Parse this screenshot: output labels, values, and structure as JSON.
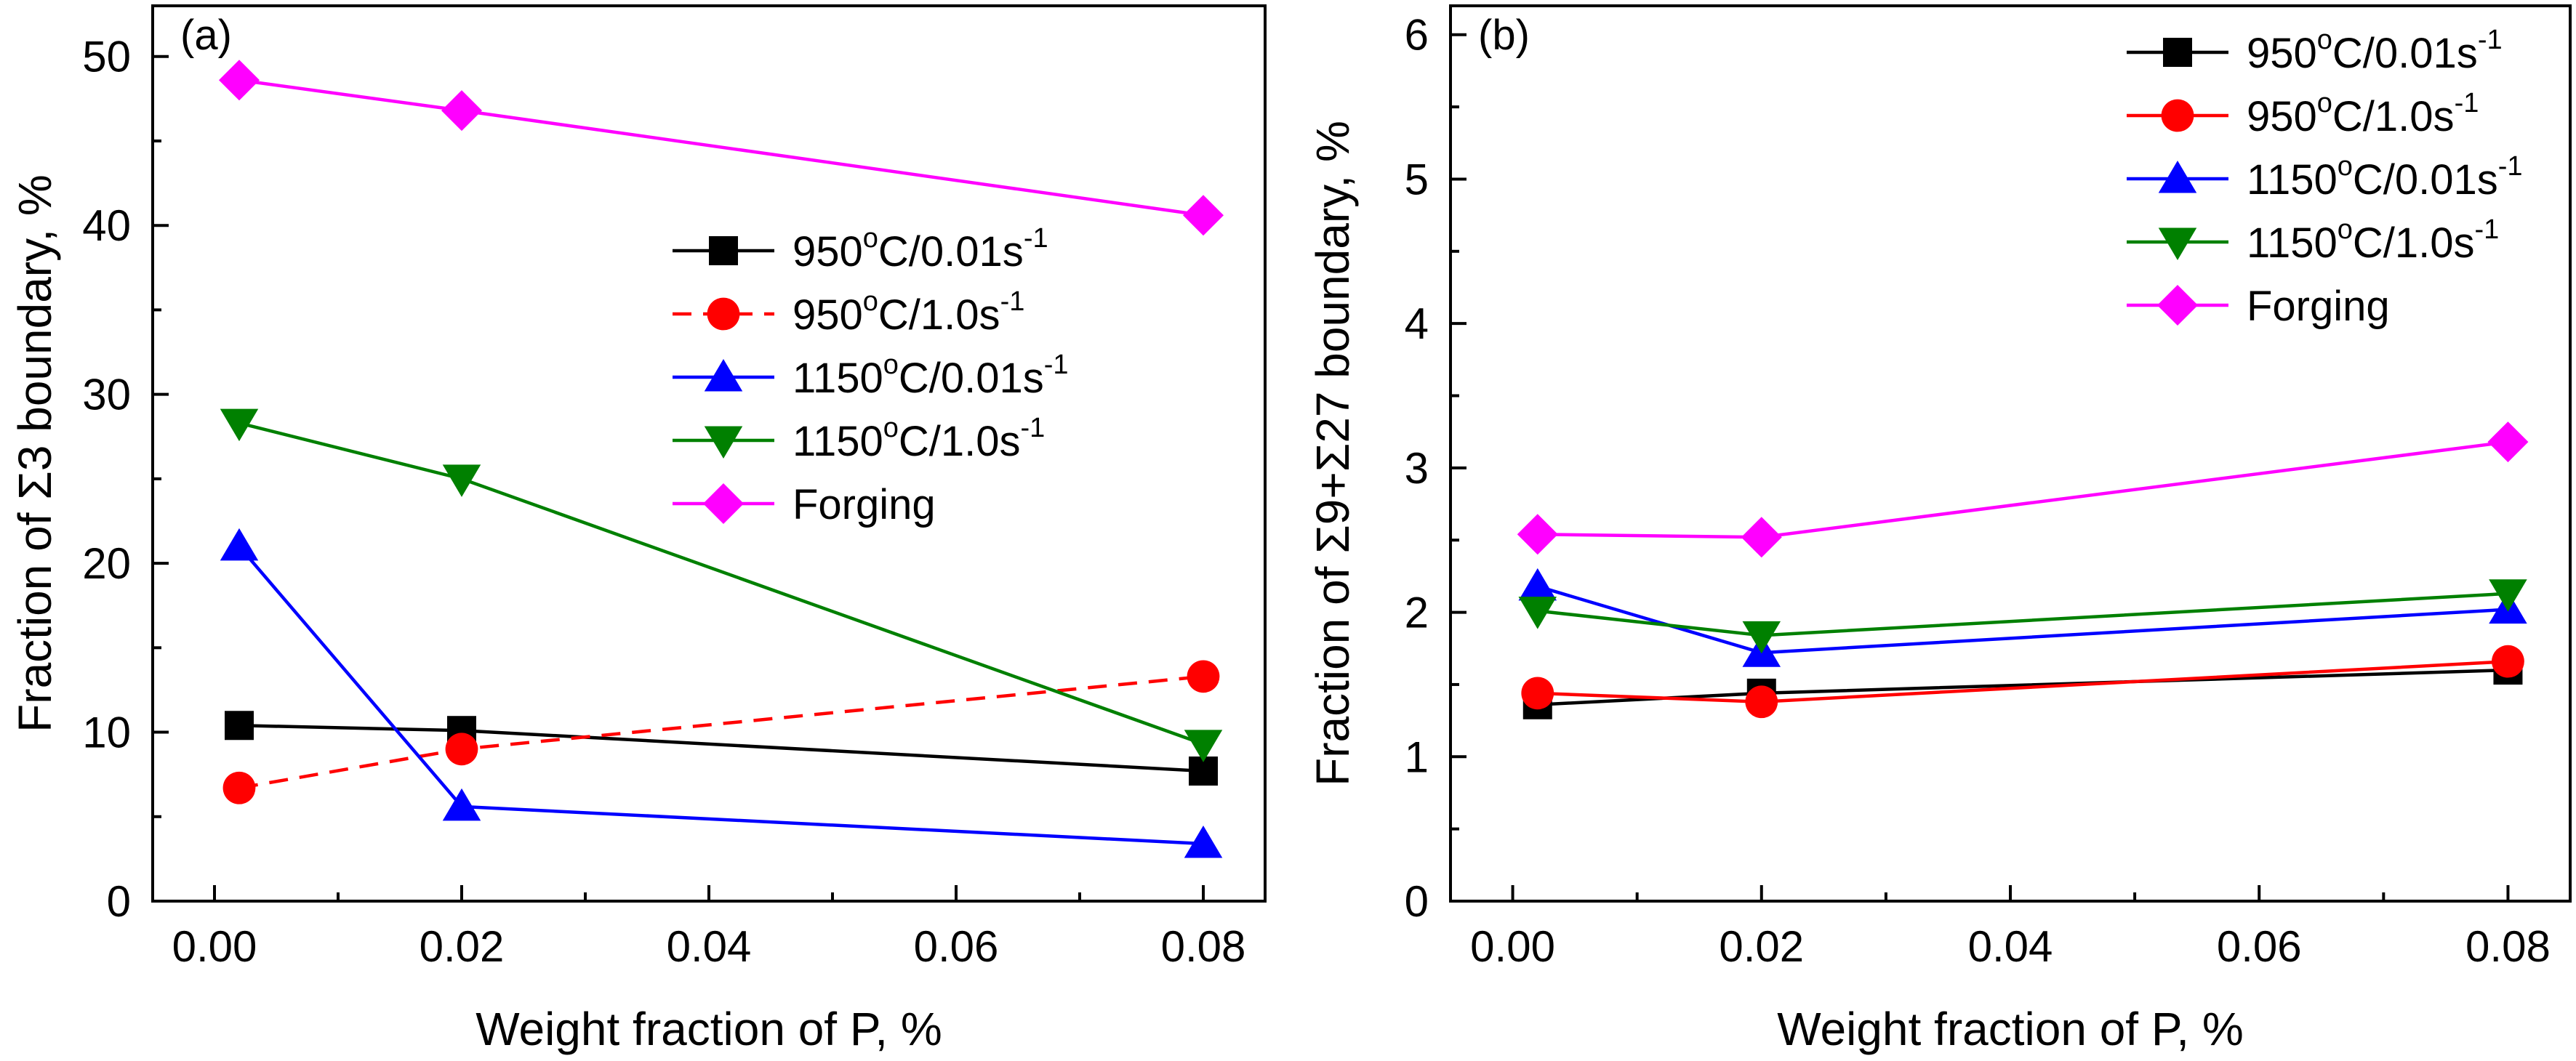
{
  "chart_data": [
    {
      "panel_label": "(a)",
      "type": "line",
      "xlabel": "Weight fraction of P, %",
      "ylabel": "Fraction of Σ3 boundary, %",
      "xlim": [
        -0.005,
        0.085
      ],
      "ylim": [
        0,
        53
      ],
      "x_ticks": [
        0.0,
        0.02,
        0.04,
        0.06,
        0.08
      ],
      "x_tick_labels": [
        "0.00",
        "0.02",
        "0.04",
        "0.06",
        "0.08"
      ],
      "y_ticks": [
        0,
        10,
        20,
        30,
        40,
        50
      ],
      "y_tick_labels": [
        "0",
        "10",
        "20",
        "30",
        "40",
        "50"
      ],
      "x": [
        0.002,
        0.02,
        0.08
      ],
      "legend_position": "right",
      "series": [
        {
          "name": "950°C/0.01s⁻¹",
          "label_main": "950",
          "label_rest": "C/0.01s",
          "color": "#000000",
          "marker": "square",
          "dashed": false,
          "values": [
            10.4,
            10.1,
            7.7
          ]
        },
        {
          "name": "950°C/1.0s⁻¹",
          "label_main": "950",
          "label_rest": "C/1.0s",
          "color": "#ff0000",
          "marker": "circle",
          "dashed": true,
          "values": [
            6.7,
            9.0,
            13.3
          ]
        },
        {
          "name": "1150°C/0.01s⁻¹",
          "label_main": "1150",
          "label_rest": "C/0.01s",
          "color": "#0000ff",
          "marker": "triangle-up",
          "dashed": false,
          "values": [
            21.0,
            5.6,
            3.4
          ]
        },
        {
          "name": "1150°C/1.0s⁻¹",
          "label_main": "1150",
          "label_rest": "C/1.0s",
          "color": "#008000",
          "marker": "triangle-down",
          "dashed": false,
          "values": [
            28.3,
            25.0,
            9.3
          ]
        },
        {
          "name": "Forging",
          "label_main": "Forging",
          "label_rest": "",
          "color": "#ff00ff",
          "marker": "diamond",
          "dashed": false,
          "values": [
            48.6,
            46.8,
            40.6
          ]
        }
      ]
    },
    {
      "panel_label": "(b)",
      "type": "line",
      "xlabel": "Weight fraction of P, %",
      "ylabel": "Fraction of Σ9+Σ27 boundary, %",
      "xlim": [
        -0.005,
        0.085
      ],
      "ylim": [
        0,
        6.2
      ],
      "x_ticks": [
        0.0,
        0.02,
        0.04,
        0.06,
        0.08
      ],
      "x_tick_labels": [
        "0.00",
        "0.02",
        "0.04",
        "0.06",
        "0.08"
      ],
      "y_ticks": [
        0,
        1,
        2,
        3,
        4,
        5,
        6
      ],
      "y_tick_labels": [
        "0",
        "1",
        "2",
        "3",
        "4",
        "5",
        "6"
      ],
      "x": [
        0.002,
        0.02,
        0.08
      ],
      "legend_position": "top-right",
      "series": [
        {
          "name": "950°C/0.01s⁻¹",
          "label_main": "950",
          "label_rest": "C/0.01s",
          "color": "#000000",
          "marker": "square",
          "dashed": false,
          "values": [
            1.36,
            1.44,
            1.6
          ]
        },
        {
          "name": "950°C/1.0s⁻¹",
          "label_main": "950",
          "label_rest": "C/1.0s",
          "color": "#ff0000",
          "marker": "circle",
          "dashed": false,
          "values": [
            1.44,
            1.38,
            1.66
          ]
        },
        {
          "name": "1150°C/0.01s⁻¹",
          "label_main": "1150",
          "label_rest": "C/0.01s",
          "color": "#0000ff",
          "marker": "triangle-up",
          "dashed": false,
          "values": [
            2.18,
            1.72,
            2.02
          ]
        },
        {
          "name": "1150°C/1.0s⁻¹",
          "label_main": "1150",
          "label_rest": "C/1.0s",
          "color": "#008000",
          "marker": "triangle-down",
          "dashed": false,
          "values": [
            2.01,
            1.84,
            2.13
          ]
        },
        {
          "name": "Forging",
          "label_main": "Forging",
          "label_rest": "",
          "color": "#ff00ff",
          "marker": "diamond",
          "dashed": false,
          "values": [
            2.54,
            2.52,
            3.18
          ]
        }
      ]
    }
  ]
}
